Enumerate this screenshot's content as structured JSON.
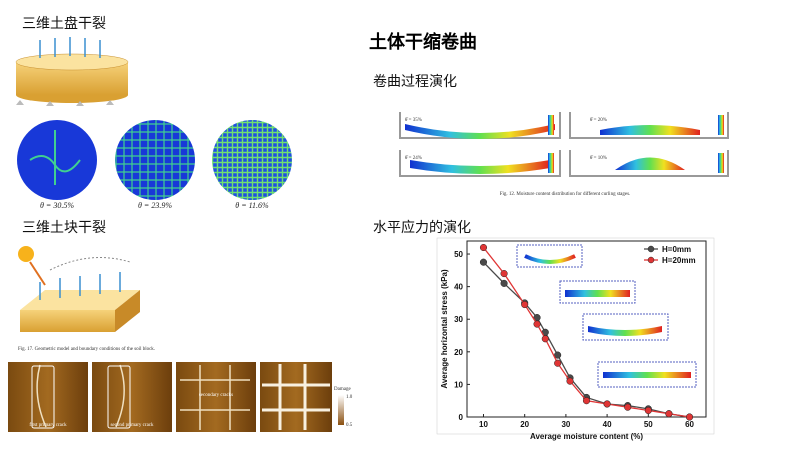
{
  "title": "土体干缩卷曲",
  "disk": {
    "heading": "三维土盘干裂",
    "captions": [
      "θ = 30.5%",
      "θ = 23.9%",
      "θ = 11.6%"
    ]
  },
  "block": {
    "heading": "三维土块干裂",
    "figure_caption": "Fig. 17. Geometric model and boundary conditions of the soil block.",
    "crack_labels": [
      "first primary crack",
      "second primary crack",
      "secondary cracks"
    ],
    "legend_title": "Damage",
    "legend_max": "1.0",
    "legend_min": "0.5"
  },
  "curl": {
    "heading": "卷曲过程演化",
    "panels": [
      "θ̄ = 35%",
      "θ̄ = 20%",
      "θ̄ = 24%",
      "θ̄ = 10%"
    ],
    "figure_caption": "Fig. 12. Moisture content distribution for different curling stages."
  },
  "stress": {
    "heading": "水平应力的演化"
  },
  "chart_data": {
    "type": "line",
    "x": [
      10,
      15,
      20,
      23,
      25,
      28,
      31,
      35,
      40,
      45,
      50,
      55,
      60
    ],
    "series": [
      {
        "name": "H=0mm",
        "color": "#4a4a4a",
        "values": [
          47.5,
          41,
          35,
          30.5,
          26,
          19,
          12,
          6,
          4,
          3.5,
          2.5,
          1,
          0
        ]
      },
      {
        "name": "H=20mm",
        "color": "#e03535",
        "values": [
          52,
          44,
          34.5,
          28.5,
          24,
          16.5,
          11,
          5,
          4,
          3,
          2,
          1,
          0
        ]
      }
    ],
    "xlabel": "Average moisture content (%)",
    "ylabel": "Average horizontal stress (kPa)",
    "xlim": [
      6,
      64
    ],
    "xticks": [
      10,
      20,
      30,
      40,
      50,
      60
    ],
    "ylim": [
      0,
      54
    ],
    "yticks": [
      0,
      10,
      20,
      30,
      40,
      50
    ],
    "legend": "upper right"
  }
}
